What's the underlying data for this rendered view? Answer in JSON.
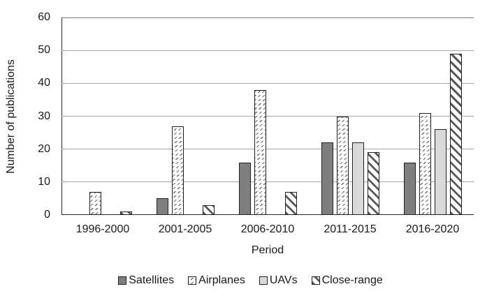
{
  "chart_data": {
    "type": "bar",
    "title": "",
    "xlabel": "Period",
    "ylabel": "Number of publications",
    "categories": [
      "1996-2000",
      "2001-2005",
      "2006-2010",
      "2011-2015",
      "2016-2020"
    ],
    "series": [
      {
        "name": "Satellites",
        "pattern": "solid-dark",
        "values": [
          0,
          5,
          16,
          22,
          16
        ]
      },
      {
        "name": "Airplanes",
        "pattern": "hatch-up",
        "values": [
          7,
          27,
          38,
          30,
          31
        ]
      },
      {
        "name": "UAVs",
        "pattern": "solid-light",
        "values": [
          0,
          0,
          0,
          22,
          26
        ]
      },
      {
        "name": "Close-range",
        "pattern": "stripe-down",
        "values": [
          1,
          3,
          7,
          19,
          49
        ]
      }
    ],
    "ylim": [
      0,
      60
    ],
    "yticks": [
      0,
      10,
      20,
      30,
      40,
      50,
      60
    ],
    "grid": "horizontal",
    "legend_position": "bottom",
    "colors": {
      "solid_dark": "#7f7f7f",
      "solid_light": "#d9d9d9",
      "hatch_line": "#6e6e6e",
      "stripe_line": "#5a5a5a",
      "axis": "#262626",
      "grid": "#a6a6a6",
      "text": "#1a1a1a",
      "background": "#ffffff"
    }
  }
}
